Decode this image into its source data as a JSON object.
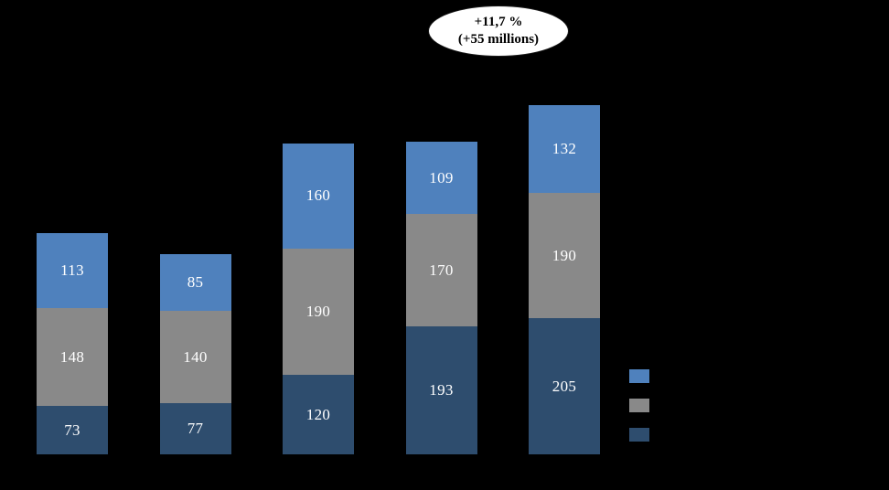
{
  "annotation": {
    "line1": "+11,7 %",
    "line2": "(+55 millions)"
  },
  "chart_data": {
    "type": "bar",
    "stacked": true,
    "background": "#000000",
    "label_color": "#ffffff",
    "legend_position": "right",
    "categories": [
      "",
      "",
      "",
      "",
      ""
    ],
    "series": [
      {
        "name": "bottom-segment",
        "color": "#2e4d6e",
        "values": [
          73,
          77,
          120,
          193,
          205
        ]
      },
      {
        "name": "middle-segment",
        "color": "#898989",
        "values": [
          148,
          140,
          190,
          170,
          190
        ]
      },
      {
        "name": "top-segment",
        "color": "#4f81bd",
        "values": [
          113,
          85,
          160,
          109,
          132
        ]
      }
    ],
    "totals": [
      334,
      302,
      470,
      472,
      527
    ],
    "annotation_text": "+11,7 % (+55 millions)"
  },
  "legend": {
    "items": [
      {
        "name": "legend-top-series",
        "color": "#4f81bd"
      },
      {
        "name": "legend-middle-series",
        "color": "#898989"
      },
      {
        "name": "legend-bottom-series",
        "color": "#2e4d6e"
      }
    ]
  }
}
